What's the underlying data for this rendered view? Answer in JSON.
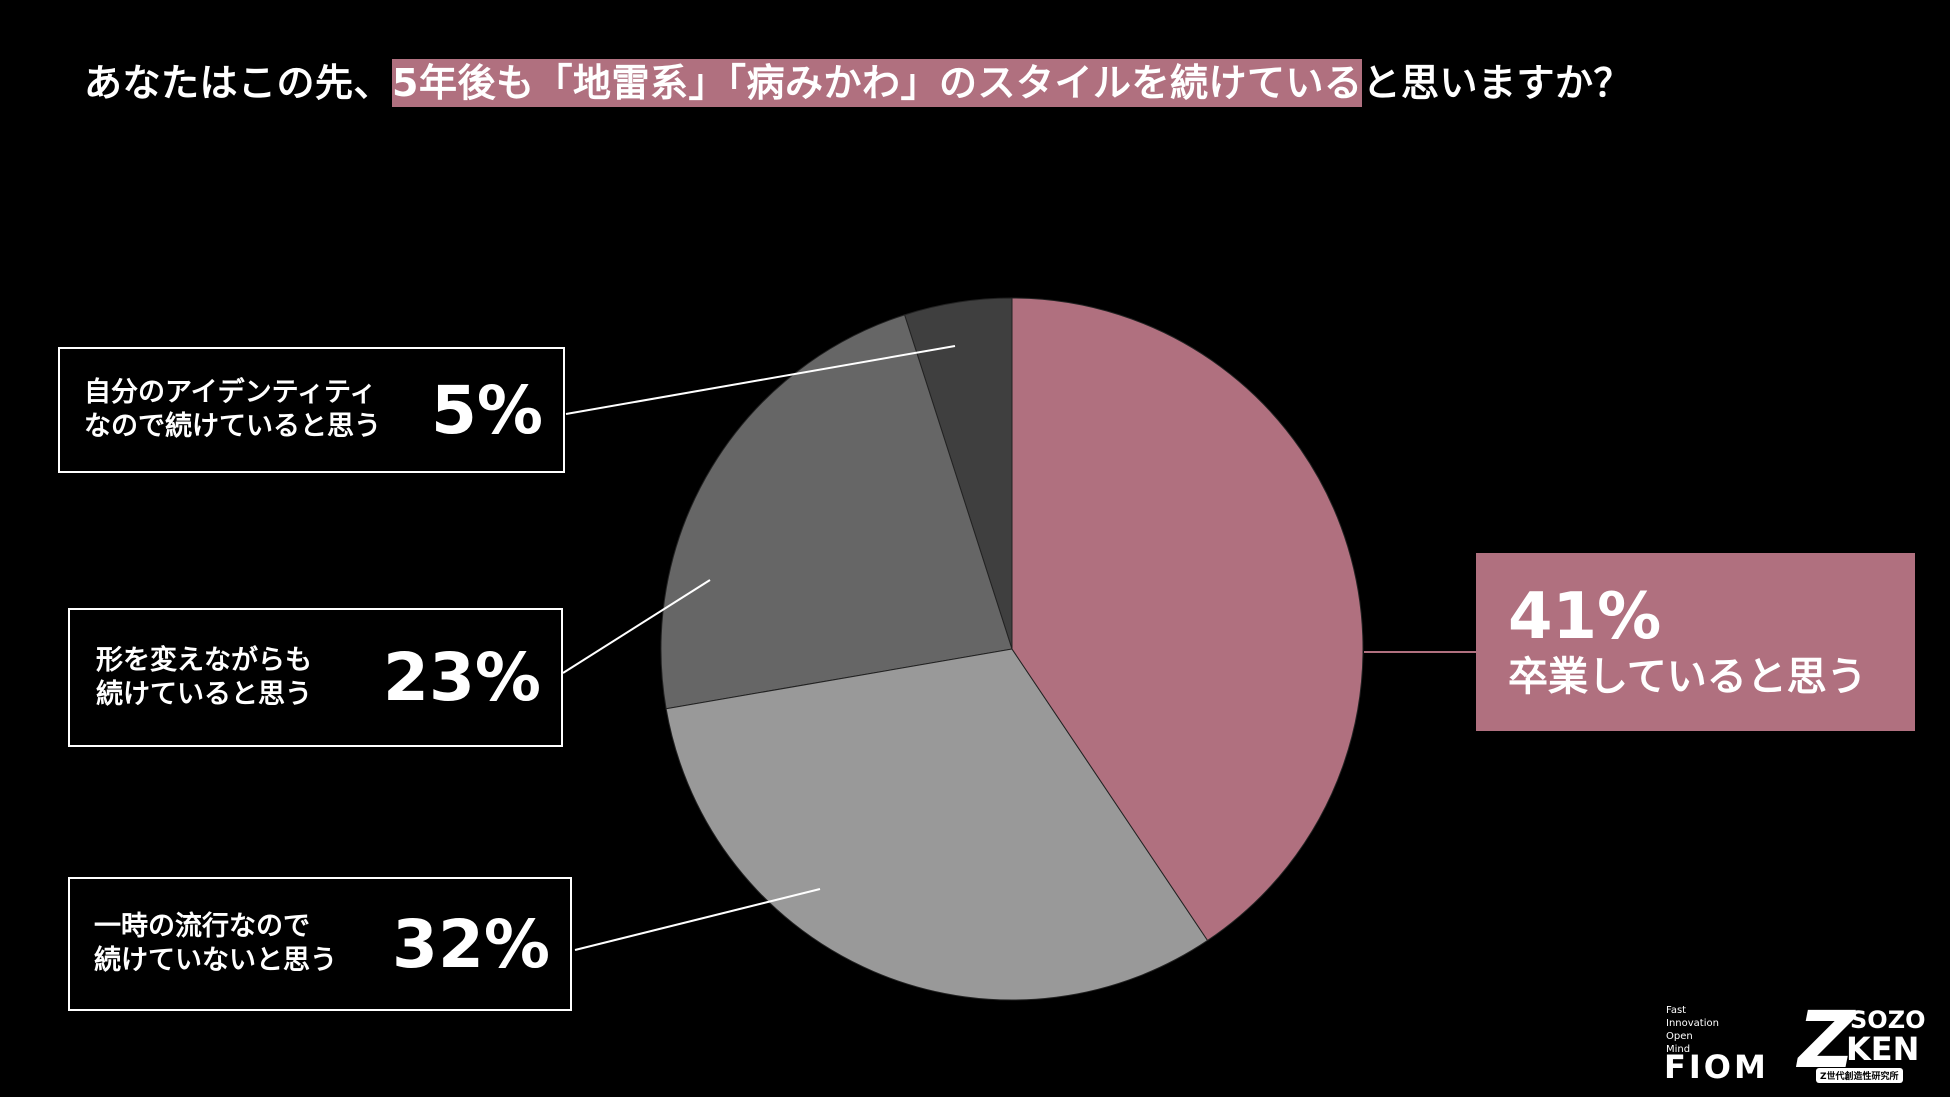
{
  "chart_data": {
    "type": "pie",
    "title": [
      "あなたはこの先、",
      "5年後も「地雷系」「病みかわ」のスタイルを続けている",
      "と思いますか？"
    ],
    "categories": [
      "卒業していると思う",
      "一時の流行なので\n続けていないと思う",
      "形を変えながらも\n続けていると思う",
      "自分のアイデンティティ\nなので続けていると思う"
    ],
    "values": [
      41,
      32,
      23,
      5
    ],
    "value_labels": [
      "41%",
      "32%",
      "23%",
      "5%"
    ],
    "colors": [
      "#b0707f",
      "#999999",
      "#666666",
      "#3f3f3f"
    ]
  },
  "logos": {
    "fiom_tagline": "Fast\nInnovation\nOpen\nMind",
    "fiom": "FIOM",
    "sozo": "SOZO",
    "ken": "KEN",
    "lab": "Z世代創造性研究所"
  }
}
